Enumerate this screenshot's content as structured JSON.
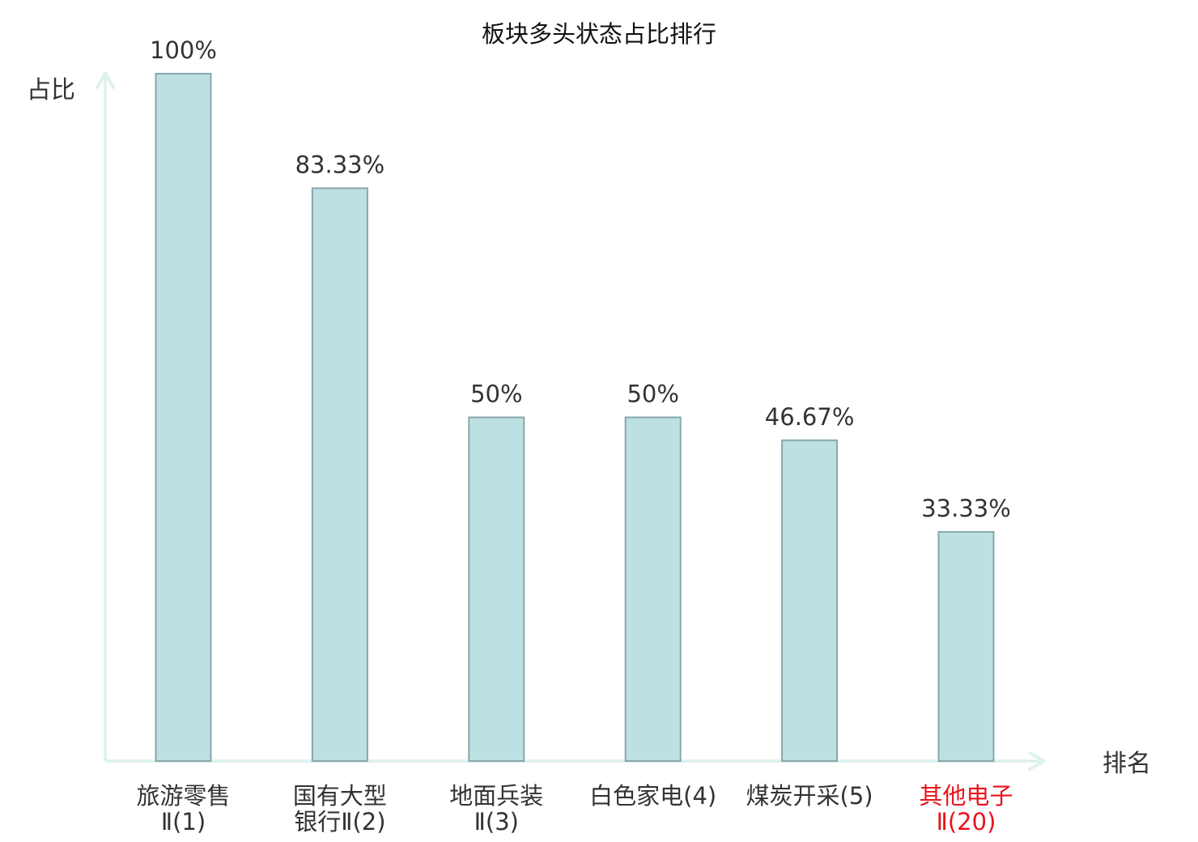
{
  "chart_data": {
    "type": "bar",
    "title": "板块多头状态占比排行",
    "xlabel": "排名",
    "ylabel": "占比",
    "ylim": [
      0,
      100
    ],
    "grid": false,
    "categories": [
      {
        "name": "旅游零售",
        "suffix": "Ⅱ(1)",
        "highlight": false
      },
      {
        "name": "国有大型",
        "suffix": "银行Ⅱ(2)",
        "highlight": false
      },
      {
        "name": "地面兵装",
        "suffix": "Ⅱ(3)",
        "highlight": false
      },
      {
        "name": "白色家电",
        "suffix": "(4)",
        "highlight": false
      },
      {
        "name": "煤炭开采",
        "suffix": "(5)",
        "highlight": false
      },
      {
        "name": "其他电子",
        "suffix": "Ⅱ(20)",
        "highlight": true
      }
    ],
    "values": [
      100,
      83.33,
      50,
      50,
      46.67,
      33.33
    ],
    "value_labels": [
      "100%",
      "83.33%",
      "50%",
      "50%",
      "46.67%",
      "33.33%"
    ]
  },
  "colors": {
    "bar_fill": "#bde0e3",
    "bar_stroke": "#87a8ab",
    "axis": "#e0f2ef",
    "text": "#333333",
    "title": "#111111",
    "highlight": "#e8141c"
  }
}
